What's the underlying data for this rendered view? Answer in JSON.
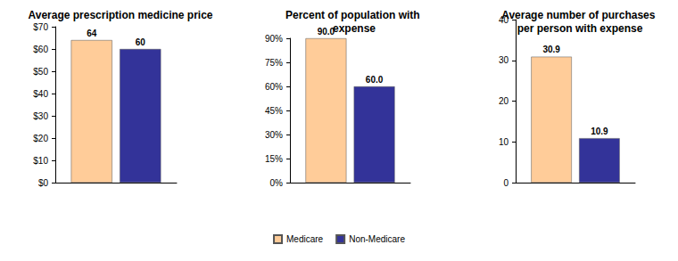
{
  "chart_data": [
    {
      "type": "bar",
      "title": "Average prescription medicine price",
      "categories": [
        null
      ],
      "series": [
        {
          "name": "Medicare",
          "color": "#FFCC99",
          "values": [
            64
          ]
        },
        {
          "name": "Non-Medicare",
          "color": "#333399",
          "values": [
            60
          ]
        }
      ],
      "ylim": [
        0,
        70
      ],
      "yticks": [
        {
          "value": 0,
          "label": "$0"
        },
        {
          "value": 10,
          "label": "$10"
        },
        {
          "value": 20,
          "label": "$20"
        },
        {
          "value": 30,
          "label": "$30"
        },
        {
          "value": 40,
          "label": "$40"
        },
        {
          "value": 50,
          "label": "$50"
        },
        {
          "value": 60,
          "label": "$60"
        },
        {
          "value": 70,
          "label": "$70"
        }
      ],
      "grid": false,
      "data_labels": true,
      "tick_labels": "y",
      "legend": "bottom"
    },
    {
      "type": "bar",
      "title": "Percent of population with expense",
      "categories": [
        null
      ],
      "series": [
        {
          "name": "Medicare",
          "color": "#FFCC99",
          "values": [
            90
          ],
          "value_labels": [
            "90.0"
          ]
        },
        {
          "name": "Non-Medicare",
          "color": "#333399",
          "values": [
            60
          ],
          "value_labels": [
            "60.0"
          ]
        }
      ],
      "ylim": [
        0,
        90
      ],
      "yticks": [
        {
          "value": 0,
          "label": "0%"
        },
        {
          "value": 15,
          "label": "15%"
        },
        {
          "value": 30,
          "label": "30%"
        },
        {
          "value": 45,
          "label": "45%"
        },
        {
          "value": 60,
          "label": "60%"
        },
        {
          "value": 75,
          "label": "75%"
        },
        {
          "value": 90,
          "label": "90%"
        }
      ],
      "grid": false,
      "data_labels": true,
      "tick_labels": "y",
      "legend": "bottom"
    },
    {
      "type": "bar",
      "title": "Average number of purchases per person with expense",
      "categories": [
        null
      ],
      "series": [
        {
          "name": "Medicare",
          "color": "#FFCC99",
          "values": [
            30.9
          ]
        },
        {
          "name": "Non-Medicare",
          "color": "#333399",
          "values": [
            10.9
          ]
        }
      ],
      "ylim": [
        0,
        40
      ],
      "yticks": [
        0,
        10,
        20,
        30,
        40
      ],
      "grid": false,
      "data_labels": true,
      "tick_labels": "y",
      "legend": "bottom"
    }
  ]
}
